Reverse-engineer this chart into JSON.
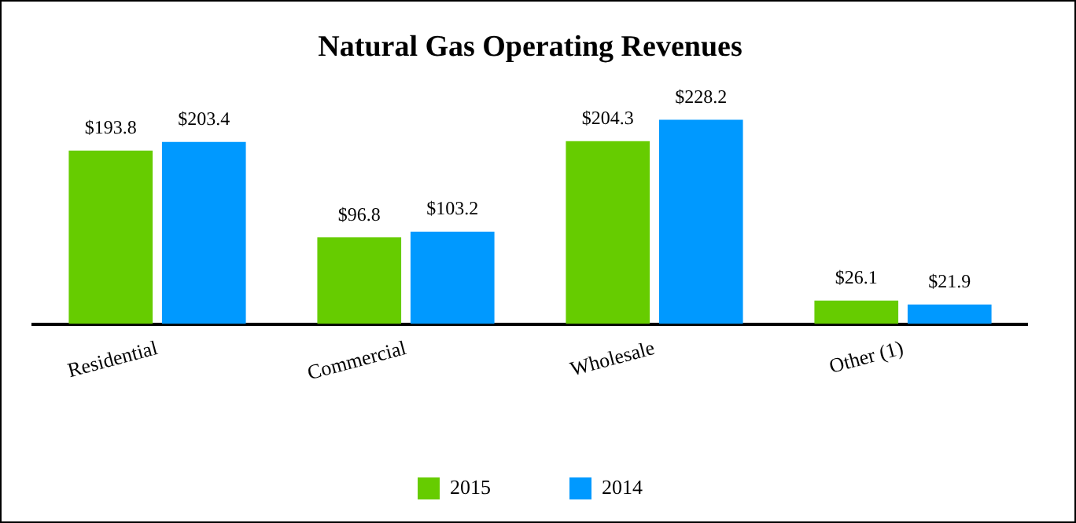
{
  "chart_data": {
    "type": "bar",
    "title": "Natural Gas Operating Revenues",
    "categories": [
      "Residential",
      "Commercial",
      "Wholesale",
      "Other (1)"
    ],
    "series": [
      {
        "name": "2015",
        "color": "#66cc00",
        "values": [
          193.8,
          96.8,
          204.3,
          26.1
        ],
        "value_labels": [
          "$193.8",
          "$96.8",
          "$204.3",
          "$26.1"
        ]
      },
      {
        "name": "2014",
        "color": "#0099ff",
        "values": [
          203.4,
          103.2,
          228.2,
          21.9
        ],
        "value_labels": [
          "$203.4",
          "$103.2",
          "$228.2",
          "$21.9"
        ]
      }
    ],
    "legend": "bottom",
    "grid": false
  }
}
